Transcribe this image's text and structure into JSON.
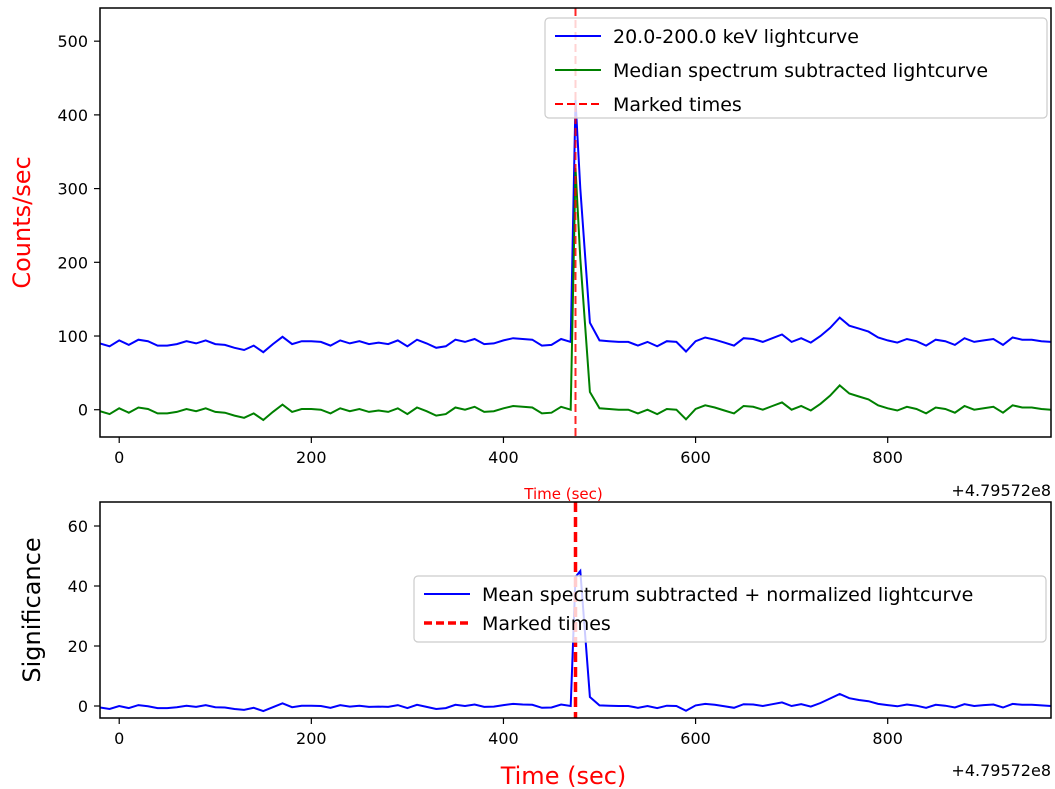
{
  "chart_data": [
    {
      "type": "line",
      "xlabel": "Time (sec)",
      "ylabel": "Counts/sec",
      "offset_label": "+4.79572e8",
      "xlim": [
        -20,
        970
      ],
      "ylim": [
        -37,
        545
      ],
      "xticks": [
        0,
        200,
        400,
        600,
        800
      ],
      "yticks": [
        0,
        100,
        200,
        300,
        400,
        500
      ],
      "xtick_labels": [
        "0",
        "200",
        "400",
        "600",
        "800"
      ],
      "ytick_labels": [
        "0",
        "100",
        "200",
        "300",
        "400",
        "500"
      ],
      "grid": false,
      "legend_position": "upper-right",
      "marked_times": [
        475
      ],
      "series": [
        {
          "name": "20.0-200.0 keV lightcurve",
          "color": "#0000ff",
          "style": "solid",
          "x": [
            -20,
            -10,
            0,
            10,
            20,
            30,
            40,
            50,
            60,
            70,
            80,
            90,
            100,
            110,
            120,
            130,
            140,
            150,
            160,
            170,
            180,
            190,
            200,
            210,
            220,
            230,
            240,
            250,
            260,
            270,
            280,
            290,
            300,
            310,
            320,
            330,
            340,
            350,
            360,
            370,
            380,
            390,
            400,
            410,
            420,
            430,
            440,
            450,
            460,
            470,
            475,
            480,
            490,
            500,
            510,
            520,
            530,
            540,
            550,
            560,
            570,
            580,
            590,
            600,
            610,
            620,
            630,
            640,
            650,
            660,
            670,
            680,
            690,
            700,
            710,
            720,
            730,
            740,
            750,
            760,
            770,
            780,
            790,
            800,
            810,
            820,
            830,
            840,
            850,
            860,
            870,
            880,
            890,
            900,
            910,
            920,
            930,
            940,
            950,
            960,
            970
          ],
          "values": [
            90,
            86,
            94,
            88,
            95,
            93,
            87,
            87,
            89,
            93,
            90,
            94,
            89,
            88,
            84,
            81,
            87,
            78,
            89,
            99,
            89,
            93,
            93,
            92,
            87,
            94,
            90,
            93,
            89,
            91,
            89,
            94,
            86,
            95,
            90,
            84,
            86,
            95,
            92,
            96,
            89,
            90,
            94,
            97,
            96,
            95,
            87,
            88,
            96,
            92,
            420,
            300,
            118,
            94,
            93,
            92,
            92,
            87,
            92,
            86,
            93,
            92,
            79,
            93,
            98,
            95,
            91,
            87,
            97,
            96,
            92,
            97,
            102,
            92,
            97,
            91,
            100,
            111,
            125,
            114,
            110,
            106,
            98,
            94,
            91,
            96,
            93,
            87,
            95,
            93,
            88,
            97,
            92,
            94,
            96,
            88,
            98,
            95,
            95,
            93,
            92
          ],
          "note": "values sampled from plot"
        },
        {
          "name": "Median spectrum subtracted lightcurve",
          "color": "#008000",
          "style": "solid",
          "x": [
            -20,
            -10,
            0,
            10,
            20,
            30,
            40,
            50,
            60,
            70,
            80,
            90,
            100,
            110,
            120,
            130,
            140,
            150,
            160,
            170,
            180,
            190,
            200,
            210,
            220,
            230,
            240,
            250,
            260,
            270,
            280,
            290,
            300,
            310,
            320,
            330,
            340,
            350,
            360,
            370,
            380,
            390,
            400,
            410,
            420,
            430,
            440,
            450,
            460,
            470,
            475,
            480,
            490,
            500,
            510,
            520,
            530,
            540,
            550,
            560,
            570,
            580,
            590,
            600,
            610,
            620,
            630,
            640,
            650,
            660,
            670,
            680,
            690,
            700,
            710,
            720,
            730,
            740,
            750,
            760,
            770,
            780,
            790,
            800,
            810,
            820,
            830,
            840,
            850,
            860,
            870,
            880,
            890,
            900,
            910,
            920,
            930,
            940,
            950,
            960,
            970
          ],
          "values": [
            -2,
            -6,
            2,
            -4,
            3,
            1,
            -5,
            -5,
            -3,
            1,
            -2,
            2,
            -3,
            -4,
            -8,
            -11,
            -5,
            -14,
            -3,
            7,
            -3,
            1,
            1,
            0,
            -5,
            2,
            -2,
            1,
            -3,
            -1,
            -3,
            2,
            -6,
            3,
            -2,
            -8,
            -6,
            3,
            0,
            4,
            -3,
            -2,
            2,
            5,
            4,
            3,
            -5,
            -4,
            4,
            0,
            328,
            205,
            24,
            2,
            1,
            0,
            0,
            -5,
            0,
            -6,
            1,
            0,
            -13,
            1,
            6,
            3,
            -1,
            -5,
            5,
            4,
            0,
            5,
            10,
            0,
            5,
            -1,
            8,
            19,
            33,
            22,
            18,
            14,
            6,
            2,
            -1,
            4,
            1,
            -5,
            3,
            1,
            -4,
            5,
            0,
            2,
            4,
            -4,
            6,
            3,
            3,
            1,
            0
          ],
          "note": "values sampled from plot"
        }
      ],
      "marked_series": {
        "name": "Marked times",
        "color": "#ff0000",
        "style": "dashed"
      }
    },
    {
      "type": "line",
      "xlabel": "Time (sec)",
      "ylabel": "Significance",
      "offset_label": "+4.79572e8",
      "xlim": [
        -20,
        970
      ],
      "ylim": [
        -4,
        68
      ],
      "xticks": [
        0,
        200,
        400,
        600,
        800
      ],
      "yticks": [
        0,
        20,
        40,
        60
      ],
      "xtick_labels": [
        "0",
        "200",
        "400",
        "600",
        "800"
      ],
      "ytick_labels": [
        "0",
        "20",
        "40",
        "60"
      ],
      "grid": false,
      "legend_position": "right",
      "marked_times": [
        475
      ],
      "series": [
        {
          "name": "Mean spectrum subtracted + normalized lightcurve",
          "color": "#0000ff",
          "style": "solid",
          "x": [
            -20,
            -10,
            0,
            10,
            20,
            30,
            40,
            50,
            60,
            70,
            80,
            90,
            100,
            110,
            120,
            130,
            140,
            150,
            160,
            170,
            180,
            190,
            200,
            210,
            220,
            230,
            240,
            250,
            260,
            270,
            280,
            290,
            300,
            310,
            320,
            330,
            340,
            350,
            360,
            370,
            380,
            390,
            400,
            410,
            420,
            430,
            440,
            450,
            460,
            470,
            475,
            480,
            490,
            500,
            510,
            520,
            530,
            540,
            550,
            560,
            570,
            580,
            590,
            600,
            610,
            620,
            630,
            640,
            650,
            660,
            670,
            680,
            690,
            700,
            710,
            720,
            730,
            740,
            750,
            760,
            770,
            780,
            790,
            800,
            810,
            820,
            830,
            840,
            850,
            860,
            870,
            880,
            890,
            900,
            910,
            920,
            930,
            940,
            950,
            960,
            970
          ],
          "values": [
            -0.5,
            -1,
            0,
            -0.7,
            0.3,
            -0.1,
            -0.7,
            -0.7,
            -0.4,
            0.1,
            -0.3,
            0.3,
            -0.4,
            -0.5,
            -1,
            -1.3,
            -0.6,
            -1.7,
            -0.4,
            0.9,
            -0.4,
            0.1,
            0.1,
            0,
            -0.6,
            0.3,
            -0.2,
            0.1,
            -0.3,
            -0.2,
            -0.3,
            0.3,
            -0.7,
            0.4,
            -0.3,
            -1,
            -0.7,
            0.4,
            0,
            0.5,
            -0.3,
            -0.2,
            0.3,
            0.7,
            0.5,
            0.4,
            -0.6,
            -0.5,
            0.5,
            0,
            43,
            45,
            3,
            0.2,
            0.1,
            0,
            0,
            -0.6,
            0,
            -0.7,
            0.1,
            0,
            -1.6,
            0.2,
            0.7,
            0.4,
            -0.1,
            -0.6,
            0.6,
            0.5,
            0,
            0.6,
            1.2,
            0,
            0.6,
            -0.2,
            1,
            2.5,
            4,
            2.6,
            2,
            1.6,
            0.7,
            0.3,
            -0.1,
            0.5,
            0.1,
            -0.6,
            0.4,
            0.1,
            -0.5,
            0.6,
            0,
            0.3,
            0.5,
            -0.5,
            0.7,
            0.4,
            0.4,
            0.2,
            0
          ],
          "note": "values sampled from plot"
        }
      ],
      "marked_series": {
        "name": "Marked times",
        "color": "#ff0000",
        "style": "dashed"
      }
    }
  ]
}
